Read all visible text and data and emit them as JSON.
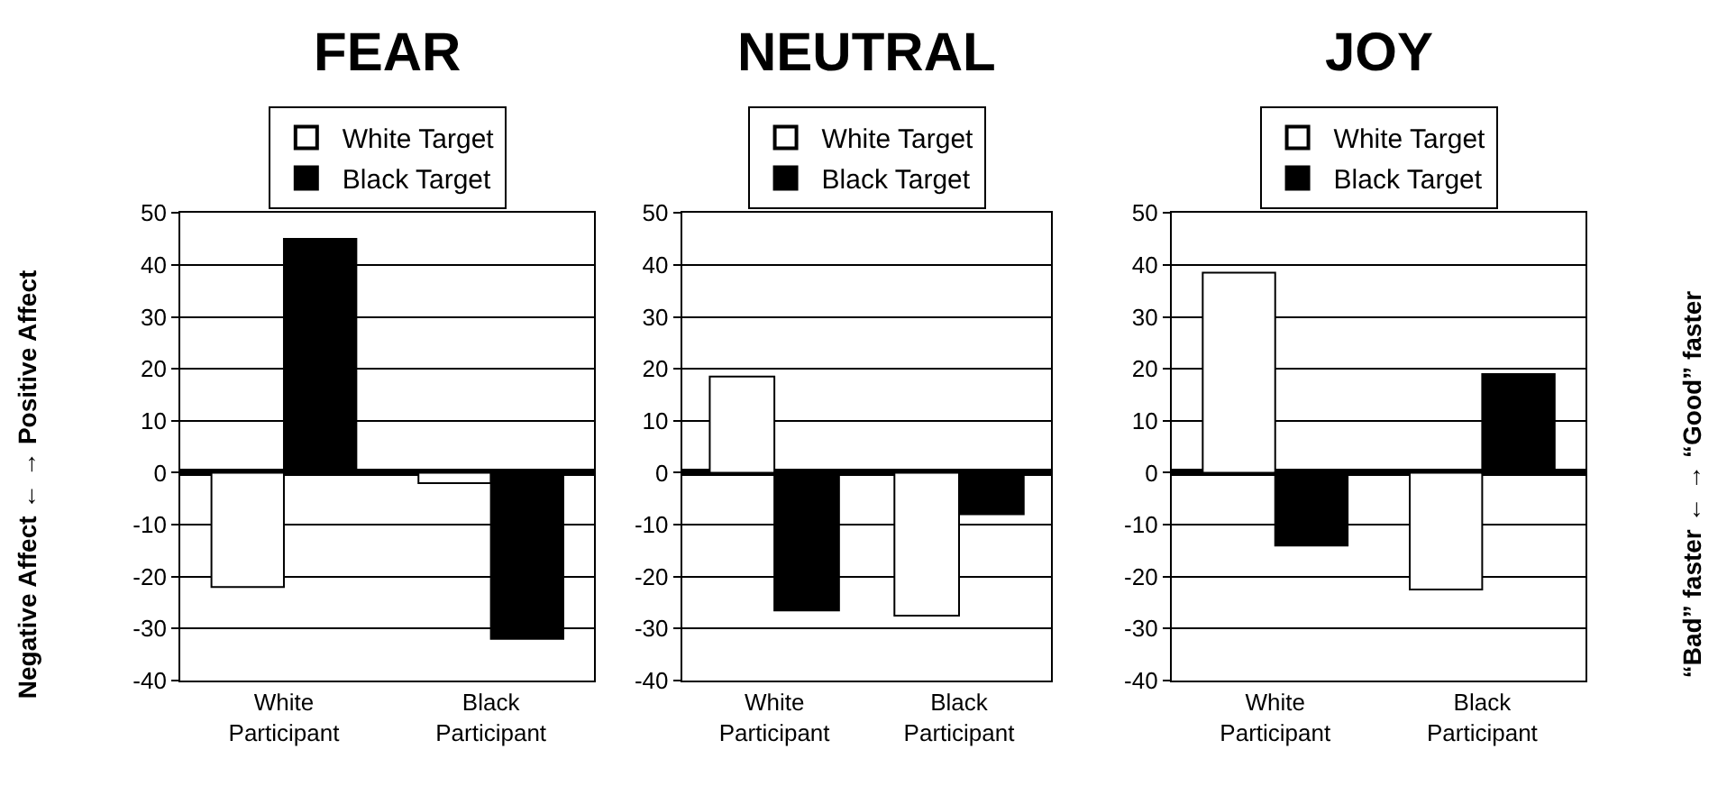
{
  "chart_data": [
    {
      "type": "bar",
      "title": "FEAR",
      "ylabel": "Negative Affect ← → Positive Affect",
      "categories": [
        "White Participant",
        "Black Participant"
      ],
      "series": [
        {
          "name": "White Target",
          "color": "#ffffff",
          "values": [
            -22,
            -2
          ]
        },
        {
          "name": "Black Target",
          "color": "#000000",
          "values": [
            45,
            -32
          ]
        }
      ],
      "ylim": [
        -40,
        50
      ],
      "yticks": [
        -40,
        -30,
        -20,
        -10,
        0,
        10,
        20,
        30,
        40,
        50
      ],
      "grid": "y",
      "legend": "top"
    },
    {
      "type": "bar",
      "title": "NEUTRAL",
      "categories": [
        "White Participant",
        "Black Participant"
      ],
      "series": [
        {
          "name": "White Target",
          "color": "#ffffff",
          "values": [
            18.5,
            -27.5
          ]
        },
        {
          "name": "Black Target",
          "color": "#000000",
          "values": [
            -26.5,
            -8
          ]
        }
      ],
      "ylim": [
        -40,
        50
      ],
      "yticks": [
        -40,
        -30,
        -20,
        -10,
        0,
        10,
        20,
        30,
        40,
        50
      ],
      "grid": "y",
      "legend": "top"
    },
    {
      "type": "bar",
      "title": "JOY",
      "y2label": "“Bad” faster ← → “Good” faster",
      "categories": [
        "White Participant",
        "Black Participant"
      ],
      "series": [
        {
          "name": "White Target",
          "color": "#ffffff",
          "values": [
            38.5,
            -22.5
          ]
        },
        {
          "name": "Black Target",
          "color": "#000000",
          "values": [
            -14,
            19
          ]
        }
      ],
      "ylim": [
        -40,
        50
      ],
      "yticks": [
        -40,
        -30,
        -20,
        -10,
        0,
        10,
        20,
        30,
        40,
        50
      ],
      "grid": "y",
      "legend": "top"
    }
  ]
}
